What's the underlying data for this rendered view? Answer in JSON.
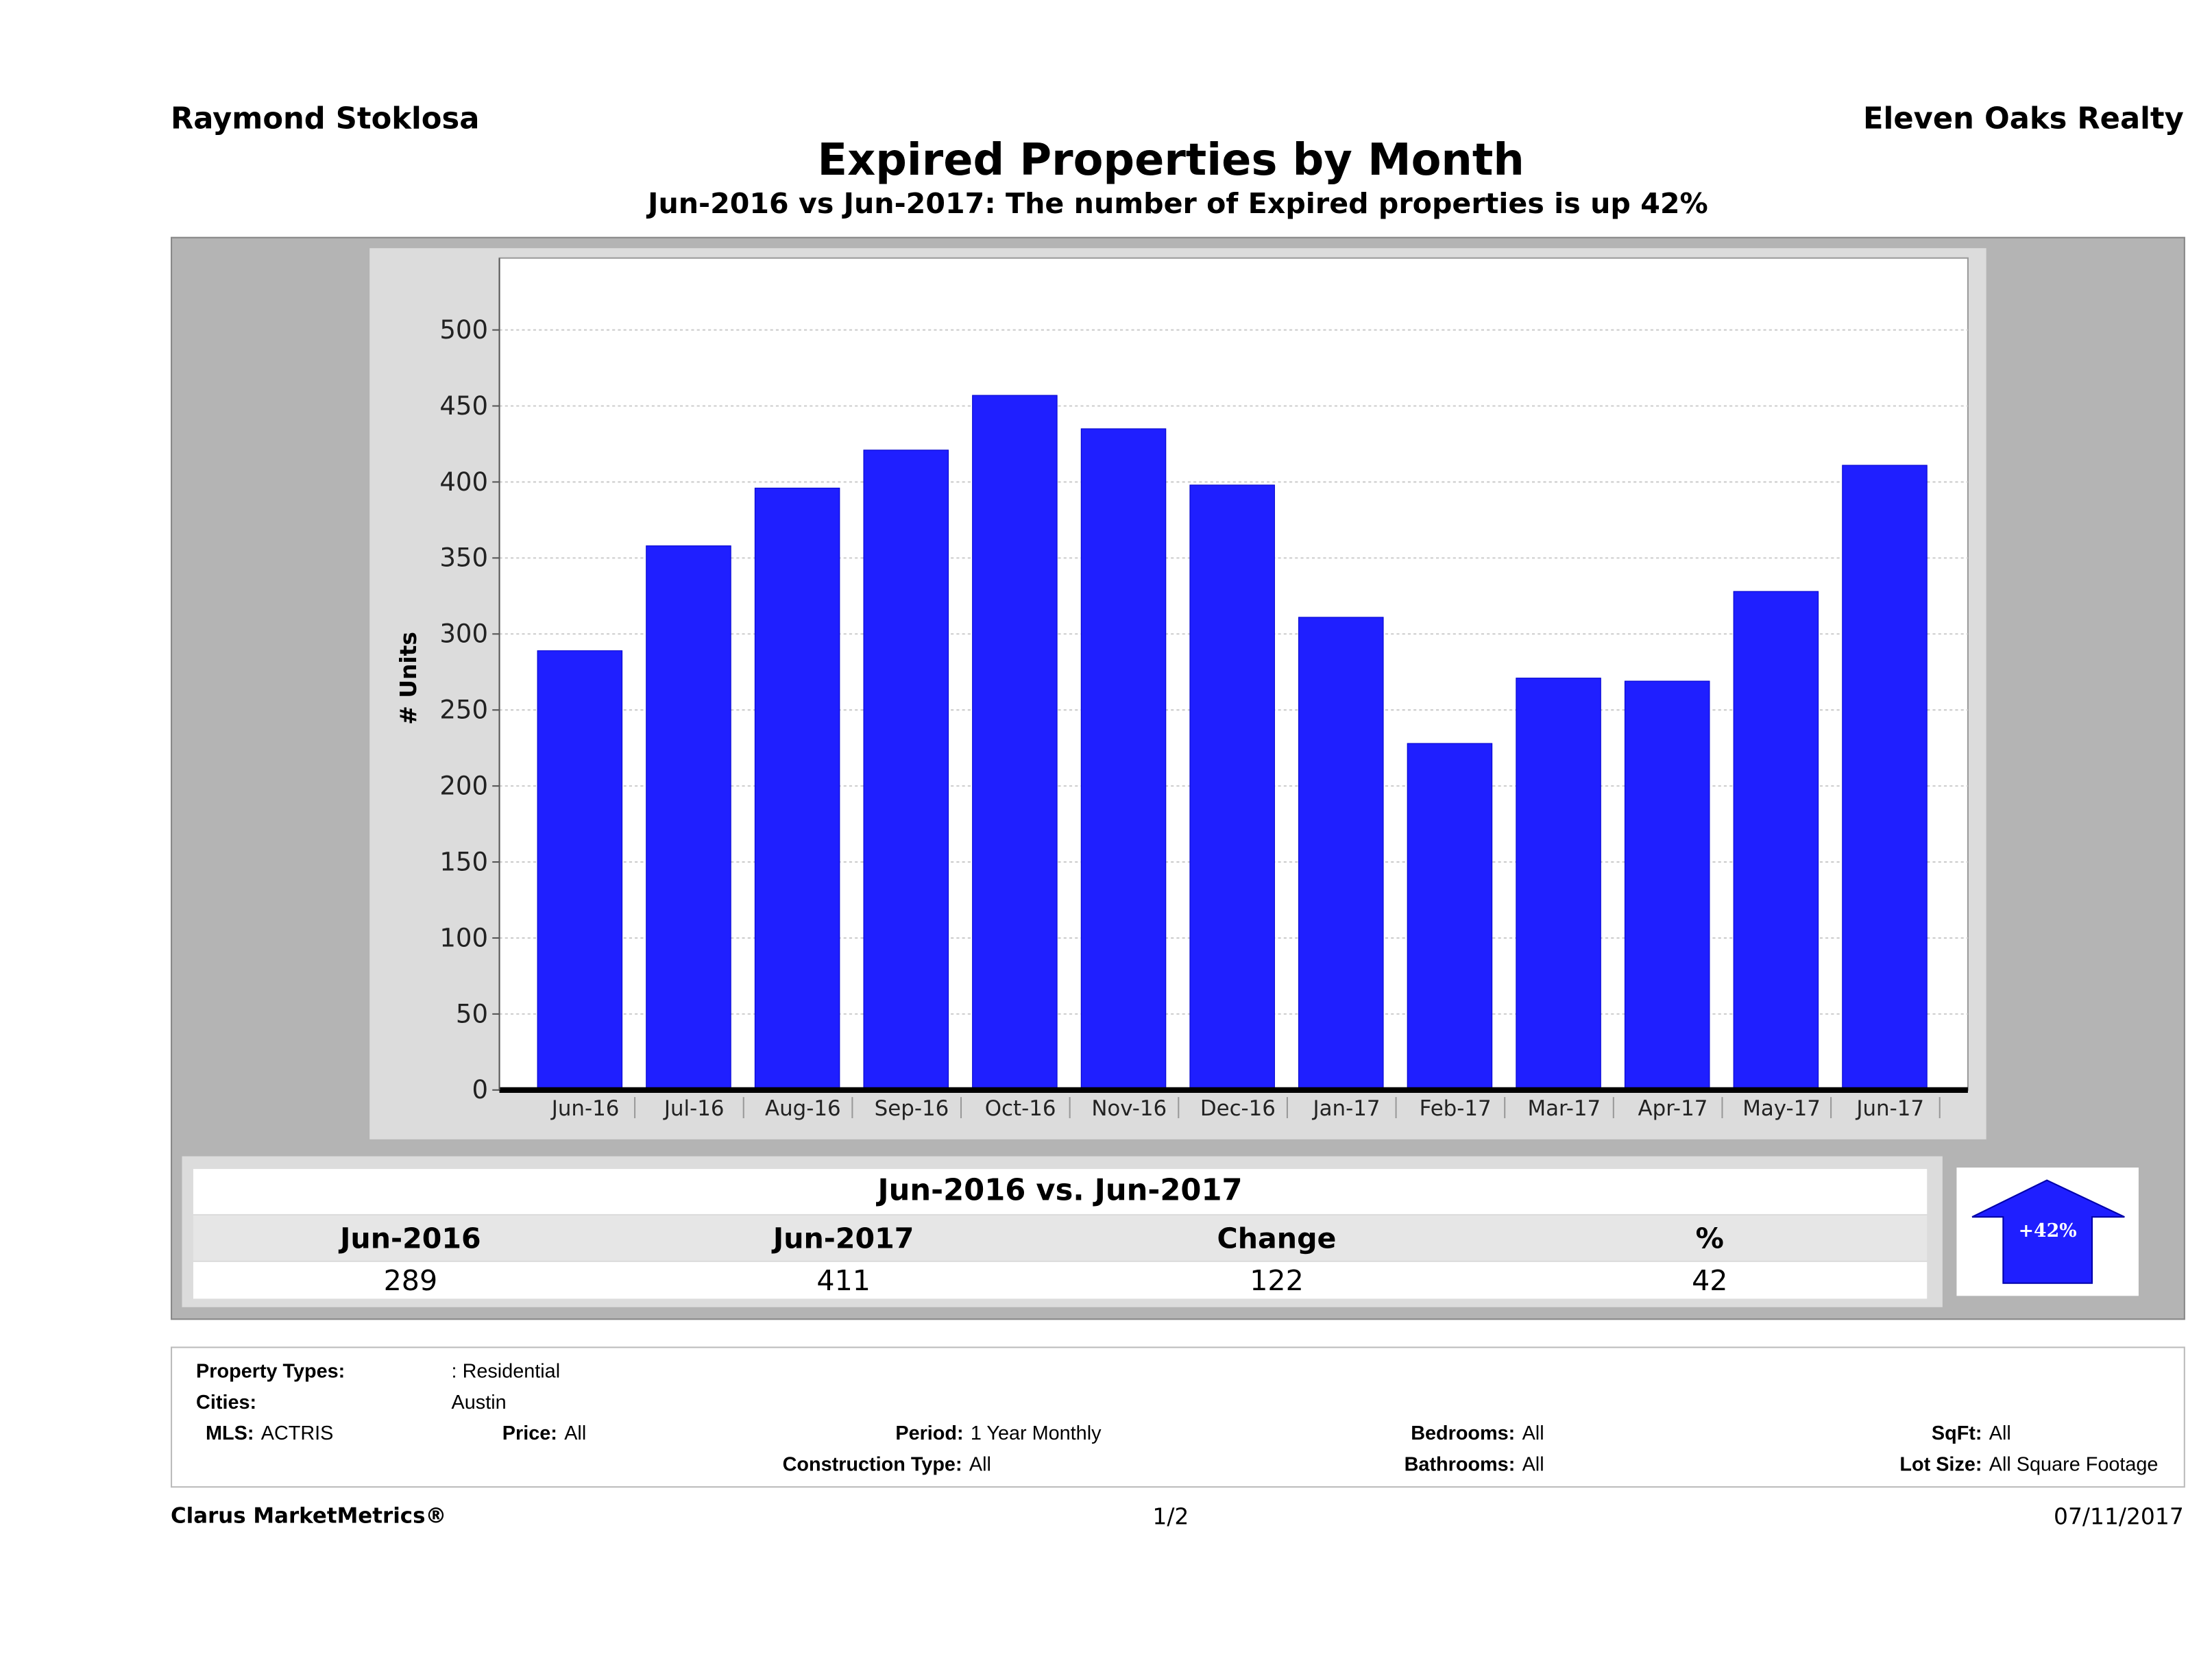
{
  "header": {
    "agent": "Raymond Stoklosa",
    "brokerage": "Eleven Oaks Realty",
    "title": "Expired Properties by Month",
    "subtitle": "Jun-2016 vs Jun-2017: The number of Expired  properties is up 42%"
  },
  "chart_data": {
    "type": "bar",
    "ylabel": "# Units",
    "ylim": [
      0,
      550
    ],
    "yticks": [
      0,
      50,
      100,
      150,
      200,
      250,
      300,
      350,
      400,
      450,
      500
    ],
    "grid": true,
    "bar_color": "#1f1fff",
    "categories": [
      "Jun-16",
      "Jul-16",
      "Aug-16",
      "Sep-16",
      "Oct-16",
      "Nov-16",
      "Dec-16",
      "Jan-17",
      "Feb-17",
      "Mar-17",
      "Apr-17",
      "May-17",
      "Jun-17"
    ],
    "values": [
      289,
      358,
      396,
      421,
      457,
      435,
      398,
      311,
      228,
      271,
      269,
      328,
      411
    ]
  },
  "summary": {
    "heading": "Jun-2016 vs. Jun-2017",
    "columns": [
      "Jun-2016",
      "Jun-2017",
      "Change",
      "%"
    ],
    "values": [
      "289",
      "411",
      "122",
      "42"
    ],
    "badge": "+42%",
    "badge_color": "#1f1fff"
  },
  "filters": {
    "property_types_label": "Property Types:",
    "property_types": ": Residential",
    "cities_label": "Cities:",
    "cities": "Austin",
    "mls_label": "MLS:",
    "mls": "ACTRIS",
    "price_label": "Price:",
    "price": "All",
    "period_label": "Period:",
    "period": "1 Year Monthly",
    "construction_label": "Construction Type:",
    "construction": "All",
    "bedrooms_label": "Bedrooms:",
    "bedrooms": "All",
    "bathrooms_label": "Bathrooms:",
    "bathrooms": "All",
    "sqft_label": "SqFt:",
    "sqft": "All",
    "lot_label": "Lot Size:",
    "lot": "All Square Footage"
  },
  "footer": {
    "brand": "Clarus MarketMetrics®",
    "page": "1/2",
    "date": "07/11/2017"
  }
}
